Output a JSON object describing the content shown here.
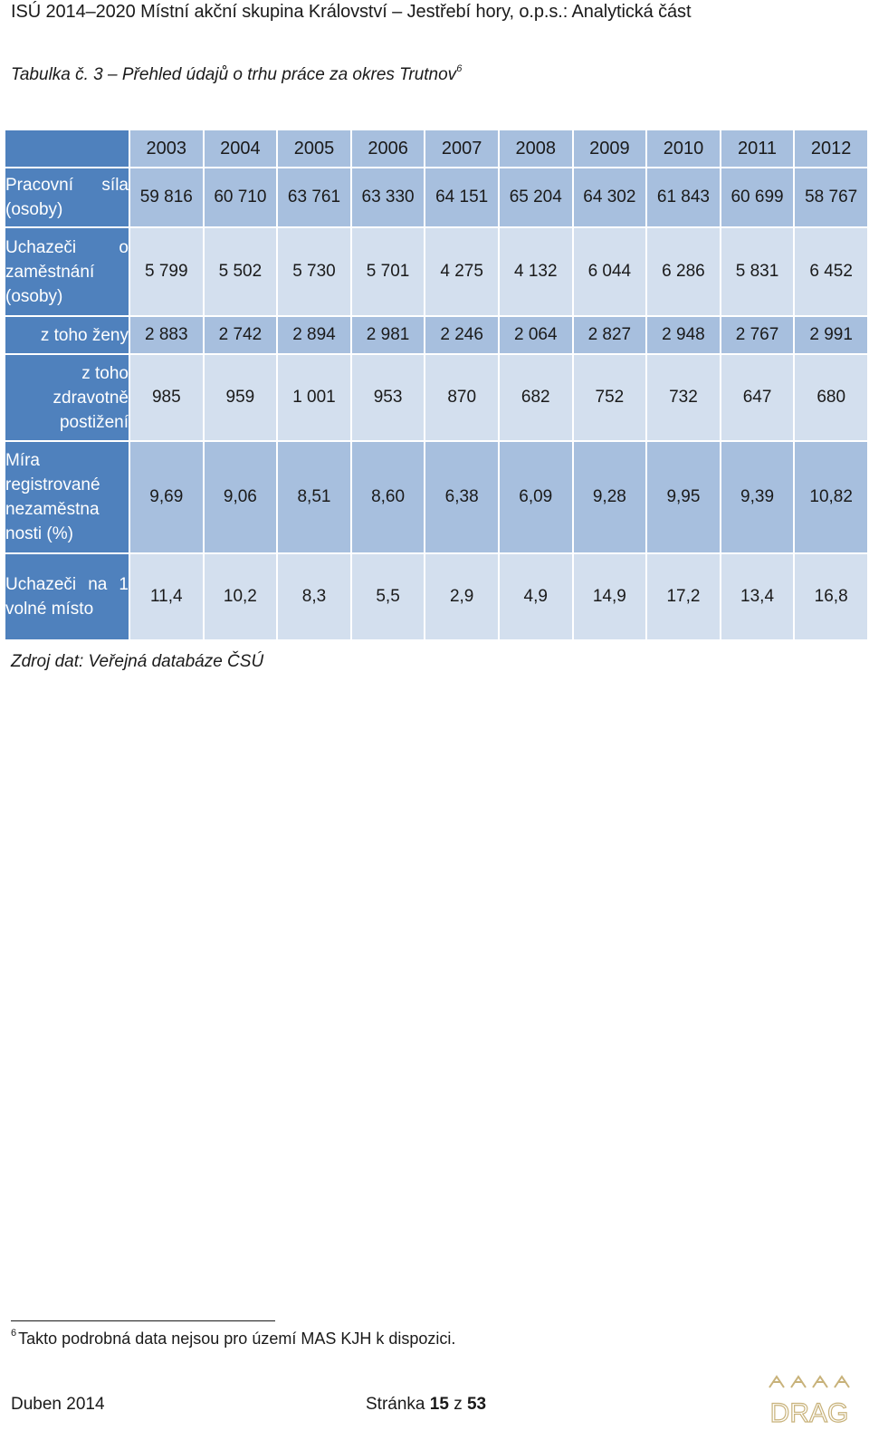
{
  "header": "ISÚ 2014–2020 Místní akční skupina Království – Jestřebí hory, o.p.s.: Analytická část",
  "caption": {
    "text": "Tabulka č. 3 – Přehled údajů o trhu práce za okres Trutnov",
    "footnote_ref": "6"
  },
  "table": {
    "years": [
      "2003",
      "2004",
      "2005",
      "2006",
      "2007",
      "2008",
      "2009",
      "2010",
      "2011",
      "2012"
    ],
    "rows": [
      {
        "label": "Pracovní síla (osoby)",
        "values": [
          "59 816",
          "60 710",
          "63 761",
          "63 330",
          "64 151",
          "65 204",
          "64 302",
          "61 843",
          "60 699",
          "58 767"
        ]
      },
      {
        "label": "Uchazeči o zaměstnání (osoby)",
        "values": [
          "5 799",
          "5 502",
          "5 730",
          "5 701",
          "4 275",
          "4 132",
          "6 044",
          "6 286",
          "5 831",
          "6 452"
        ]
      },
      {
        "label": "z toho ženy",
        "values": [
          "2 883",
          "2 742",
          "2 894",
          "2 981",
          "2 246",
          "2 064",
          "2 827",
          "2 948",
          "2 767",
          "2 991"
        ]
      },
      {
        "label": "z toho zdravotně postižení",
        "values": [
          "985",
          "959",
          "1 001",
          "953",
          "870",
          "682",
          "752",
          "732",
          "647",
          "680"
        ]
      },
      {
        "label": "Míra registrované nezaměstna nosti (%)",
        "values": [
          "9,69",
          "9,06",
          "8,51",
          "8,60",
          "6,38",
          "6,09",
          "9,28",
          "9,95",
          "9,39",
          "10,82"
        ]
      },
      {
        "label": "Uchazeči na 1 volné místo",
        "values": [
          "11,4",
          "10,2",
          "8,3",
          "5,5",
          "2,9",
          "4,9",
          "14,9",
          "17,2",
          "13,4",
          "16,8"
        ]
      }
    ]
  },
  "source": "Zdroj dat: Veřejná databáze ČSÚ",
  "footnote": {
    "number": "6",
    "text": "Takto podrobná data nejsou pro území MAS KJH k dispozici."
  },
  "footer": {
    "date": "Duben 2014",
    "page_prefix": "Stránka",
    "page_current": "15",
    "page_sep": "z",
    "page_total": "53"
  },
  "logo": {
    "text": "DRAG",
    "color": "#c8b27a"
  },
  "colors": {
    "header_blue": "#4f81bd",
    "band_dark": "#a7bfde",
    "band_light": "#d3dfee"
  }
}
